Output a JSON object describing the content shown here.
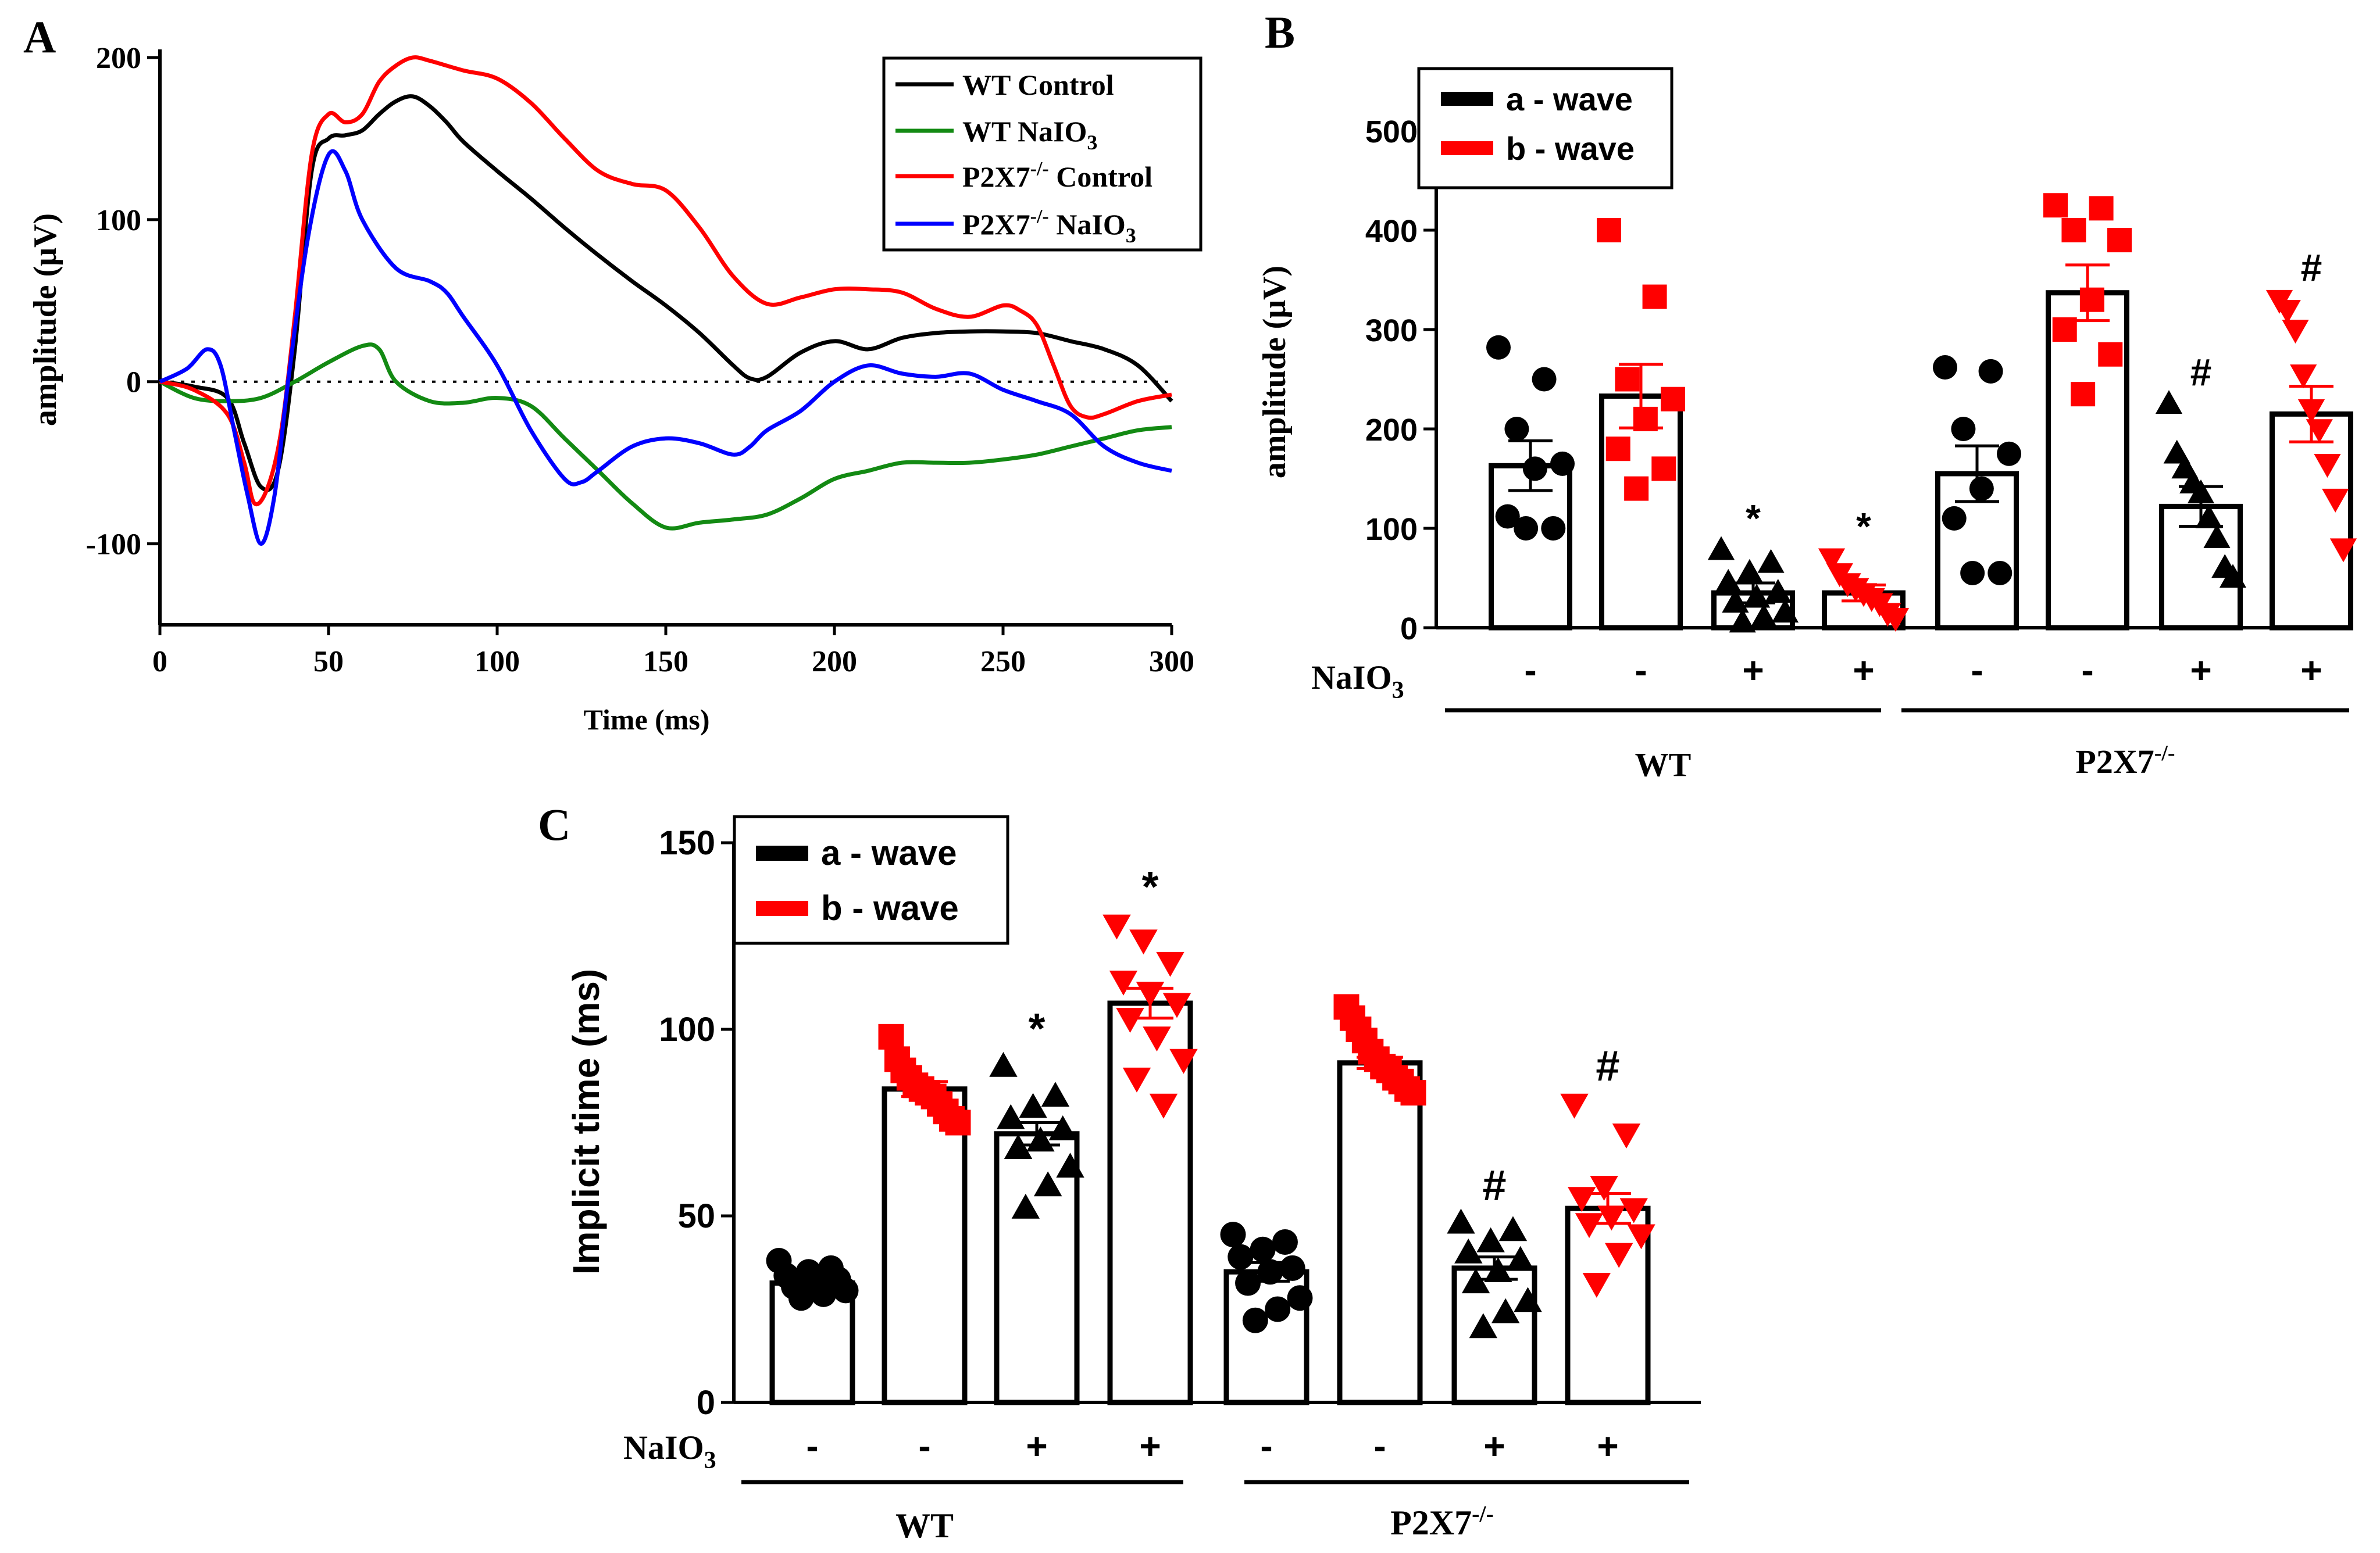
{
  "colors": {
    "wt_control": "#000000",
    "wt_naio3": "#138a13",
    "p2x7_control": "#ff0000",
    "p2x7_naio3": "#0000ff",
    "a_wave": "#000000",
    "b_wave": "#ff0000"
  },
  "chart_data": [
    {
      "panel": "A",
      "type": "line",
      "xlabel": "Time (ms)",
      "ylabel": "amplitude (μV)",
      "xlim": [
        0,
        300
      ],
      "ylim": [
        -150,
        205
      ],
      "xticks": [
        0,
        50,
        100,
        150,
        200,
        250,
        300
      ],
      "yticks": [
        -100,
        0,
        100,
        200
      ],
      "zero_line": "dotted",
      "series": [
        {
          "name": "WT Control",
          "color": "#000000",
          "points": [
            [
              0,
              0
            ],
            [
              10,
              -3
            ],
            [
              20,
              -10
            ],
            [
              25,
              -38
            ],
            [
              30,
              -65
            ],
            [
              35,
              -55
            ],
            [
              40,
              20
            ],
            [
              45,
              130
            ],
            [
              50,
              150
            ],
            [
              55,
              152
            ],
            [
              60,
              155
            ],
            [
              65,
              165
            ],
            [
              70,
              173
            ],
            [
              75,
              176
            ],
            [
              80,
              170
            ],
            [
              85,
              160
            ],
            [
              90,
              148
            ],
            [
              100,
              130
            ],
            [
              110,
              113
            ],
            [
              120,
              95
            ],
            [
              130,
              78
            ],
            [
              140,
              62
            ],
            [
              150,
              47
            ],
            [
              160,
              30
            ],
            [
              170,
              10
            ],
            [
              175,
              2
            ],
            [
              180,
              3
            ],
            [
              190,
              18
            ],
            [
              200,
              25
            ],
            [
              210,
              20
            ],
            [
              220,
              27
            ],
            [
              230,
              30
            ],
            [
              240,
              31
            ],
            [
              250,
              31
            ],
            [
              260,
              30
            ],
            [
              270,
              25
            ],
            [
              280,
              20
            ],
            [
              290,
              10
            ],
            [
              300,
              -12
            ]
          ]
        },
        {
          "name": "WT NaIO3",
          "color": "#138a13",
          "points": [
            [
              0,
              0
            ],
            [
              10,
              -10
            ],
            [
              20,
              -12
            ],
            [
              30,
              -10
            ],
            [
              40,
              0
            ],
            [
              50,
              12
            ],
            [
              60,
              22
            ],
            [
              65,
              20
            ],
            [
              70,
              0
            ],
            [
              80,
              -12
            ],
            [
              90,
              -13
            ],
            [
              100,
              -10
            ],
            [
              110,
              -15
            ],
            [
              120,
              -35
            ],
            [
              130,
              -55
            ],
            [
              140,
              -75
            ],
            [
              150,
              -90
            ],
            [
              160,
              -87
            ],
            [
              170,
              -85
            ],
            [
              180,
              -82
            ],
            [
              190,
              -72
            ],
            [
              200,
              -60
            ],
            [
              210,
              -55
            ],
            [
              220,
              -50
            ],
            [
              230,
              -50
            ],
            [
              240,
              -50
            ],
            [
              250,
              -48
            ],
            [
              260,
              -45
            ],
            [
              270,
              -40
            ],
            [
              280,
              -35
            ],
            [
              290,
              -30
            ],
            [
              300,
              -28
            ]
          ]
        },
        {
          "name": "P2X7-/- Control",
          "color": "#ff0000",
          "points": [
            [
              0,
              0
            ],
            [
              10,
              -5
            ],
            [
              20,
              -20
            ],
            [
              25,
              -50
            ],
            [
              28,
              -75
            ],
            [
              32,
              -65
            ],
            [
              36,
              -30
            ],
            [
              40,
              40
            ],
            [
              45,
              140
            ],
            [
              50,
              165
            ],
            [
              55,
              160
            ],
            [
              60,
              165
            ],
            [
              65,
              185
            ],
            [
              70,
              195
            ],
            [
              75,
              200
            ],
            [
              80,
              198
            ],
            [
              90,
              192
            ],
            [
              100,
              187
            ],
            [
              110,
              172
            ],
            [
              120,
              150
            ],
            [
              130,
              130
            ],
            [
              140,
              122
            ],
            [
              150,
              118
            ],
            [
              160,
              95
            ],
            [
              170,
              65
            ],
            [
              180,
              48
            ],
            [
              190,
              52
            ],
            [
              200,
              57
            ],
            [
              210,
              57
            ],
            [
              220,
              55
            ],
            [
              230,
              45
            ],
            [
              240,
              40
            ],
            [
              250,
              47
            ],
            [
              255,
              44
            ],
            [
              260,
              35
            ],
            [
              265,
              10
            ],
            [
              270,
              -15
            ],
            [
              275,
              -22
            ],
            [
              280,
              -20
            ],
            [
              290,
              -12
            ],
            [
              300,
              -8
            ]
          ]
        },
        {
          "name": "P2X7-/- NaIO3",
          "color": "#0000ff",
          "points": [
            [
              0,
              0
            ],
            [
              8,
              8
            ],
            [
              14,
              20
            ],
            [
              18,
              10
            ],
            [
              22,
              -30
            ],
            [
              26,
              -70
            ],
            [
              30,
              -100
            ],
            [
              34,
              -70
            ],
            [
              38,
              0
            ],
            [
              44,
              90
            ],
            [
              50,
              140
            ],
            [
              55,
              130
            ],
            [
              60,
              100
            ],
            [
              70,
              70
            ],
            [
              80,
              62
            ],
            [
              85,
              55
            ],
            [
              90,
              40
            ],
            [
              100,
              10
            ],
            [
              110,
              -30
            ],
            [
              120,
              -60
            ],
            [
              125,
              -62
            ],
            [
              130,
              -55
            ],
            [
              140,
              -40
            ],
            [
              150,
              -35
            ],
            [
              160,
              -38
            ],
            [
              170,
              -45
            ],
            [
              175,
              -40
            ],
            [
              180,
              -30
            ],
            [
              190,
              -18
            ],
            [
              200,
              0
            ],
            [
              210,
              10
            ],
            [
              220,
              5
            ],
            [
              230,
              3
            ],
            [
              240,
              5
            ],
            [
              250,
              -5
            ],
            [
              260,
              -12
            ],
            [
              270,
              -20
            ],
            [
              280,
              -40
            ],
            [
              290,
              -50
            ],
            [
              300,
              -55
            ]
          ]
        }
      ],
      "legend": {
        "items": [
          "WT Control",
          "WT NaIO",
          "P2X7",
          "P2X7"
        ],
        "item_texts": [
          {
            "main": "WT Control",
            "sup": "",
            "sub": "",
            "tail": ""
          },
          {
            "main": "WT NaIO",
            "sup": "",
            "sub": "3",
            "tail": ""
          },
          {
            "main": "P2X7",
            "sup": "-/-",
            "sub": "",
            "tail": " Control"
          },
          {
            "main": "P2X7",
            "sup": "-/-",
            "sub": "",
            "tail": " NaIO",
            "sub2": "3"
          }
        ],
        "placement": "top-right"
      }
    },
    {
      "panel": "B",
      "type": "bar",
      "ylabel": "amplitude (μV)",
      "ylim": [
        0,
        500
      ],
      "yticks": [
        0,
        100,
        200,
        300,
        400,
        500
      ],
      "treatment_label": "NaIO",
      "treatment_sub": "3",
      "groups": [
        "WT",
        "P2X7"
      ],
      "group_sup": [
        "",
        "-/-"
      ],
      "bars": [
        {
          "group": "WT",
          "wave": "a - wave",
          "naio3": "-",
          "mean": 163,
          "sem": 25,
          "marker": "circle",
          "annotation": "",
          "points": [
            282,
            250,
            200,
            165,
            160,
            112,
            100,
            100
          ]
        },
        {
          "group": "WT",
          "wave": "b - wave",
          "naio3": "-",
          "mean": 233,
          "sem": 32,
          "marker": "square",
          "annotation": "",
          "points": [
            400,
            333,
            250,
            230,
            210,
            180,
            160,
            140
          ]
        },
        {
          "group": "WT",
          "wave": "a - wave",
          "naio3": "+",
          "mean": 35,
          "sem": 10,
          "marker": "triangle-up",
          "annotation": "*",
          "points": [
            78,
            65,
            55,
            45,
            35,
            30,
            25,
            15,
            10,
            5
          ]
        },
        {
          "group": "WT",
          "wave": "b - wave",
          "naio3": "+",
          "mean": 35,
          "sem": 8,
          "marker": "triangle-down",
          "annotation": "*",
          "points": [
            70,
            55,
            45,
            40,
            35,
            30,
            25,
            15,
            10
          ]
        },
        {
          "group": "P2X7",
          "wave": "a - wave",
          "naio3": "-",
          "mean": 155,
          "sem": 28,
          "marker": "circle",
          "annotation": "",
          "points": [
            262,
            258,
            200,
            175,
            140,
            110,
            55,
            55
          ]
        },
        {
          "group": "P2X7",
          "wave": "b - wave",
          "naio3": "-",
          "mean": 337,
          "sem": 28,
          "marker": "square",
          "annotation": "",
          "points": [
            425,
            422,
            400,
            390,
            330,
            300,
            275,
            235
          ]
        },
        {
          "group": "P2X7",
          "wave": "a - wave",
          "naio3": "+",
          "mean": 122,
          "sem": 20,
          "marker": "triangle-up",
          "annotation": "#",
          "points": [
            225,
            175,
            160,
            145,
            135,
            110,
            90,
            60,
            50
          ]
        },
        {
          "group": "P2X7",
          "wave": "b - wave",
          "naio3": "+",
          "mean": 215,
          "sem": 28,
          "marker": "triangle-down",
          "annotation": "#",
          "points": [
            330,
            320,
            300,
            255,
            220,
            200,
            165,
            130,
            80
          ]
        }
      ],
      "legend": {
        "items": [
          "a - wave",
          "b - wave"
        ],
        "placement": "top-left"
      }
    },
    {
      "panel": "C",
      "type": "bar",
      "ylabel": "Implicit time (ms)",
      "ylim": [
        0,
        150
      ],
      "yticks": [
        0,
        50,
        100,
        150
      ],
      "treatment_label": "NaIO",
      "treatment_sub": "3",
      "groups": [
        "WT",
        "P2X7"
      ],
      "group_sup": [
        "",
        "-/-"
      ],
      "bars": [
        {
          "group": "WT",
          "wave": "a - wave",
          "naio3": "-",
          "mean": 32,
          "sem": 1.5,
          "marker": "circle",
          "annotation": "",
          "points": [
            38,
            36,
            35,
            34,
            33,
            32,
            31,
            30,
            29,
            28
          ]
        },
        {
          "group": "WT",
          "wave": "b - wave",
          "naio3": "-",
          "mean": 84,
          "sem": 2,
          "marker": "square",
          "annotation": "",
          "points": [
            98,
            92,
            89,
            87,
            85,
            84,
            83,
            82,
            80,
            78,
            76,
            75
          ]
        },
        {
          "group": "WT",
          "wave": "a - wave",
          "naio3": "+",
          "mean": 72,
          "sem": 3,
          "marker": "triangle-up",
          "annotation": "*",
          "points": [
            90,
            82,
            79,
            76,
            73,
            70,
            68,
            63,
            58,
            52
          ]
        },
        {
          "group": "WT",
          "wave": "b - wave",
          "naio3": "+",
          "mean": 107,
          "sem": 4,
          "marker": "triangle-down",
          "annotation": "*",
          "points": [
            128,
            124,
            118,
            113,
            110,
            107,
            103,
            98,
            92,
            87,
            80
          ]
        },
        {
          "group": "P2X7",
          "wave": "a - wave",
          "naio3": "-",
          "mean": 35,
          "sem": 2.5,
          "marker": "circle",
          "annotation": "",
          "points": [
            45,
            43,
            41,
            39,
            36,
            35,
            32,
            28,
            25,
            22
          ]
        },
        {
          "group": "P2X7",
          "wave": "b - wave",
          "naio3": "-",
          "mean": 91,
          "sem": 1.5,
          "marker": "square",
          "annotation": "",
          "points": [
            106,
            103,
            100,
            97,
            94,
            92,
            90,
            89,
            87,
            86,
            84,
            83
          ]
        },
        {
          "group": "P2X7",
          "wave": "a - wave",
          "naio3": "+",
          "mean": 36,
          "sem": 3,
          "marker": "triangle-up",
          "annotation": "#",
          "points": [
            48,
            46,
            43,
            40,
            38,
            35,
            32,
            27,
            24,
            20
          ]
        },
        {
          "group": "P2X7",
          "wave": "b - wave",
          "naio3": "+",
          "mean": 52,
          "sem": 4,
          "marker": "triangle-down",
          "annotation": "#",
          "points": [
            80,
            72,
            58,
            55,
            52,
            50,
            48,
            45,
            40,
            32
          ]
        }
      ],
      "legend": {
        "items": [
          "a - wave",
          "b - wave"
        ],
        "placement": "top-left"
      }
    }
  ],
  "panel_labels": [
    "A",
    "B",
    "C"
  ]
}
